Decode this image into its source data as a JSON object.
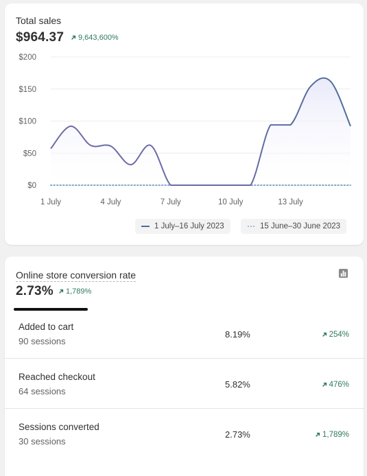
{
  "total_sales": {
    "title": "Total sales",
    "value": "$964.37",
    "change": "9,643,600%",
    "legend": {
      "current": "1 July–16 July 2023",
      "previous": "15 June–30 June 2023"
    }
  },
  "chart_data": {
    "type": "area",
    "y_ticks": [
      "$200",
      "$150",
      "$100",
      "$50",
      "$0"
    ],
    "x_ticks": [
      "1 July",
      "4 July",
      "7 July",
      "10 July",
      "13 July"
    ],
    "ylim": [
      0,
      200
    ],
    "x": [
      "1 July",
      "2 July",
      "3 July",
      "4 July",
      "5 July",
      "6 July",
      "7 July",
      "8 July",
      "9 July",
      "10 July",
      "11 July",
      "12 July",
      "13 July",
      "14 July",
      "15 July",
      "16 July"
    ],
    "series": [
      {
        "name": "1 July–16 July 2023",
        "values": [
          57,
          92,
          62,
          61,
          32,
          62,
          0,
          0,
          0,
          0,
          0,
          94,
          94,
          154,
          162,
          92
        ]
      },
      {
        "name": "15 June–30 June 2023",
        "values": [
          0,
          0,
          0,
          0,
          0,
          0,
          0,
          0,
          0,
          0,
          0,
          0,
          0,
          0,
          0,
          0
        ]
      }
    ],
    "colors": {
      "current": "#4a6e97",
      "previous": "#7fa6c4",
      "fill": "#eef0fb"
    },
    "grid": true
  },
  "conversion": {
    "title": "Online store conversion rate",
    "value": "2.73%",
    "change": "1,789%",
    "rows": [
      {
        "label": "Added to cart",
        "sessions": "90 sessions",
        "rate": "8.19%",
        "change": "254%"
      },
      {
        "label": "Reached checkout",
        "sessions": "64 sessions",
        "rate": "5.82%",
        "change": "476%"
      },
      {
        "label": "Sessions converted",
        "sessions": "30 sessions",
        "rate": "2.73%",
        "change": "1,789%"
      }
    ]
  },
  "colors": {
    "positive": "#2f7a5a",
    "card": "#ffffff",
    "background": "#f1f1f1"
  },
  "icons": {
    "up_arrow": "arrow-up-right-icon",
    "chart_toggle": "bar-chart-icon"
  }
}
